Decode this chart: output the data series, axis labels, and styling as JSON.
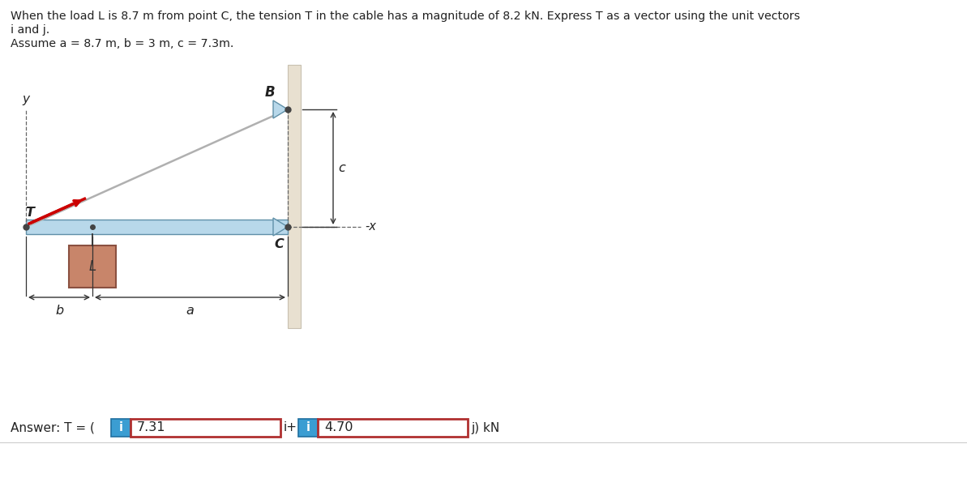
{
  "title_line1": "When the load L is 8.7 m from point C, the tension T in the cable has a magnitude of 8.2 kN. Express T as a vector using the unit vectors",
  "title_line2": "i and j.",
  "subtitle": "Assume a = 8.7 m, b = 3 m, c = 7.3m.",
  "bg_color": "#ffffff",
  "answer_value1": "7.31",
  "answer_value2": "4.70",
  "blue_btn_color": "#3b9dd2",
  "box_border_color": "#b03030",
  "wall_color": "#e8e0d0",
  "wall_edge_color": "#c8c0b0",
  "beam_color": "#b8d8ea",
  "beam_edge_color": "#6090a8",
  "cable_color": "#b0b0b0",
  "tension_color": "#cc0000",
  "load_fill": "#c8856a",
  "load_edge": "#8a5040",
  "pin_color": "#444444",
  "dim_color": "#333333",
  "text_color": "#222222",
  "dashed_color": "#666666"
}
